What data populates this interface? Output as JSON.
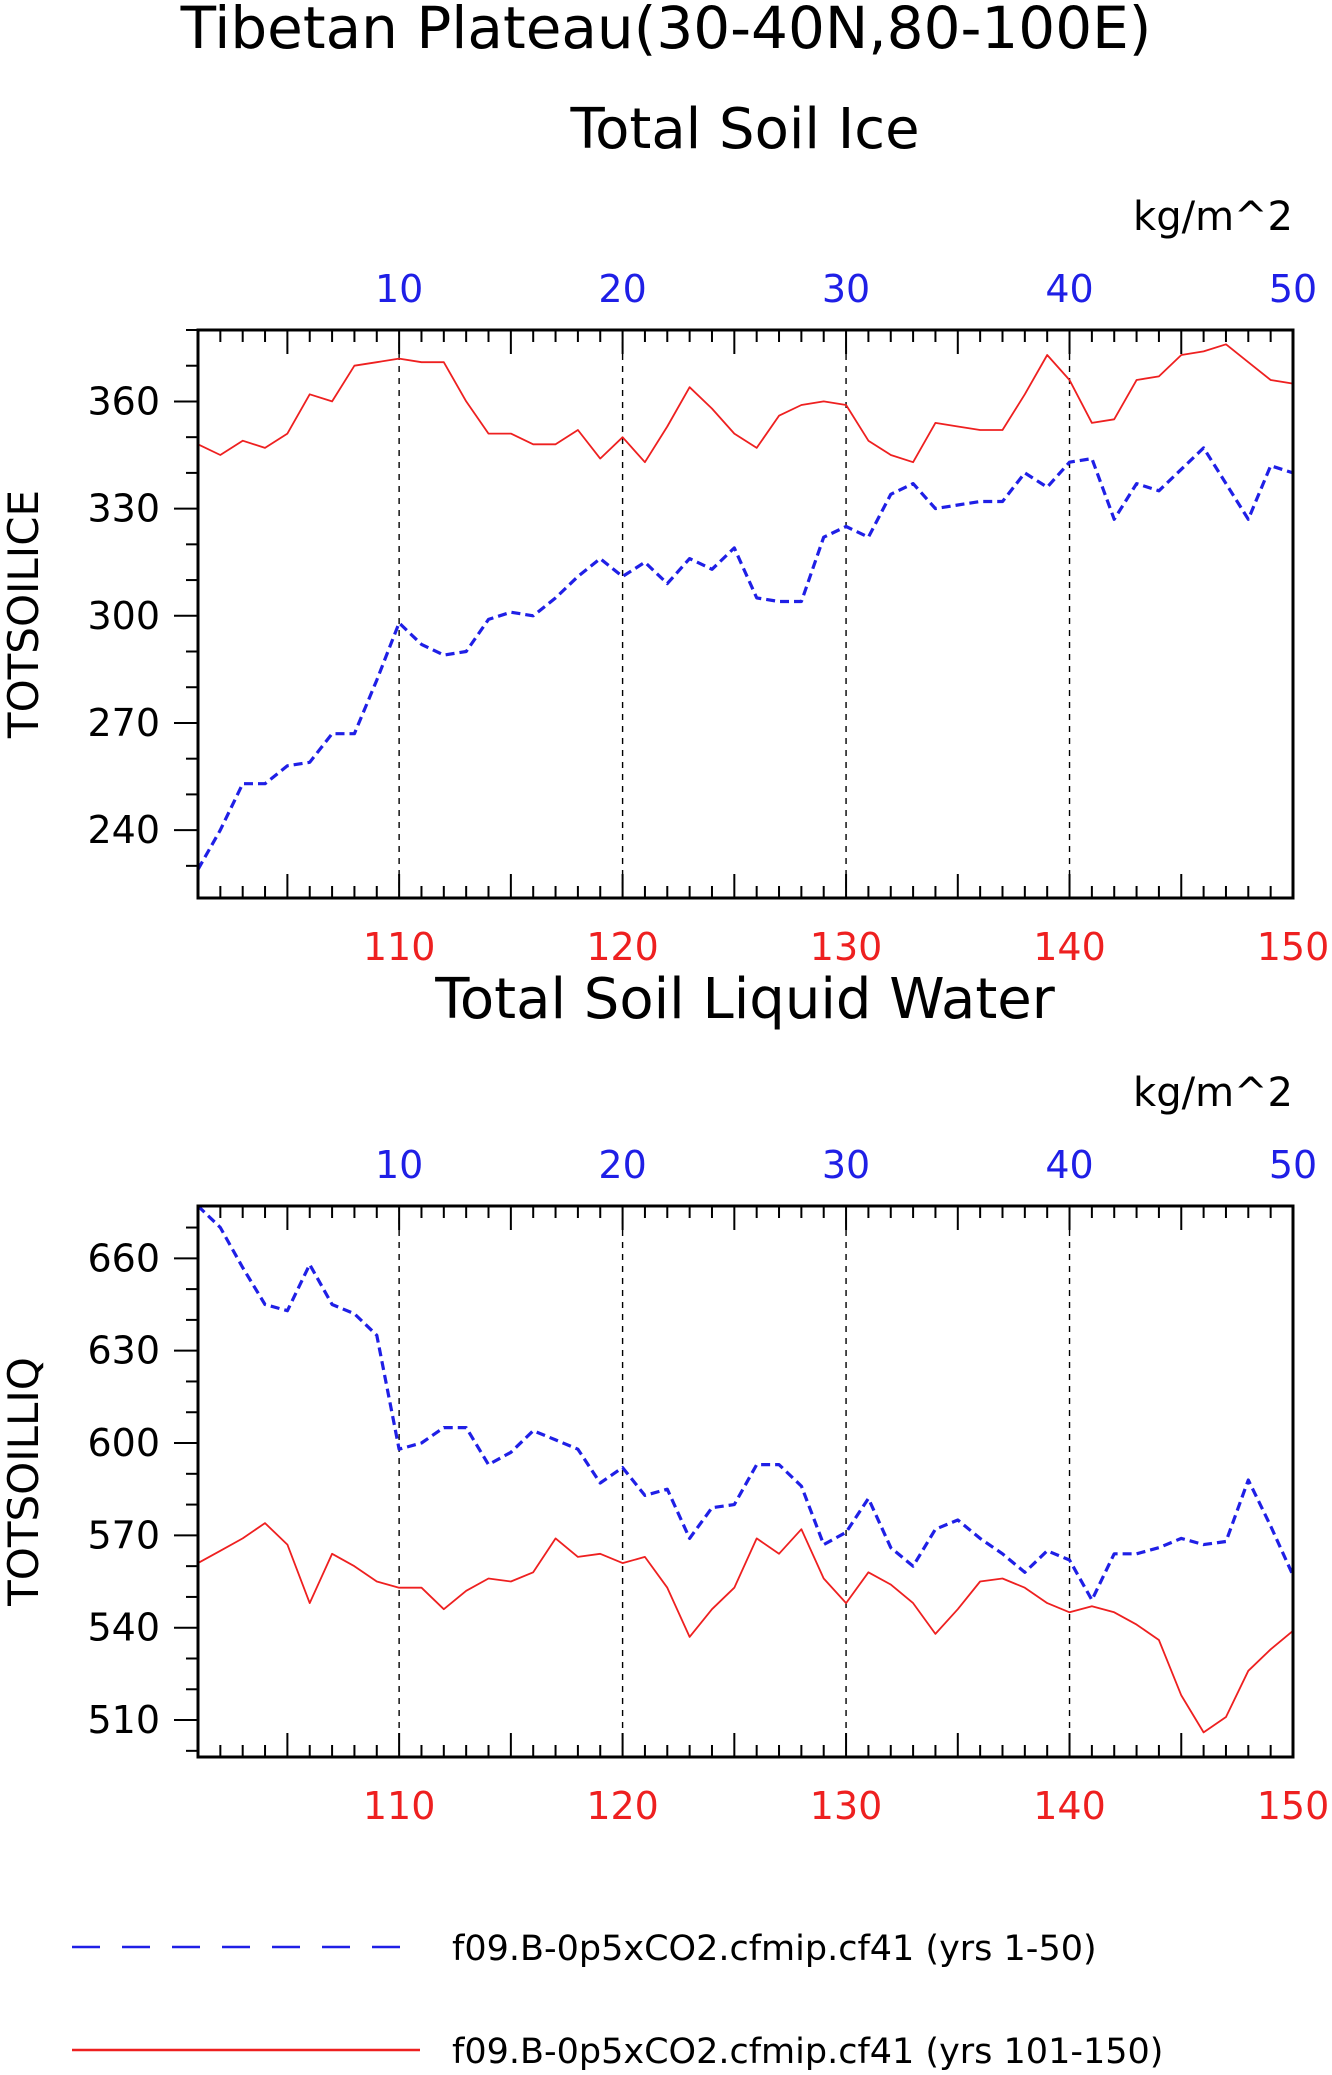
{
  "figure": {
    "title": "Tibetan Plateau(30-40N,80-100E)",
    "colors": {
      "blue": "#1f1fe6",
      "red": "#ee2020",
      "black": "#000000"
    }
  },
  "legend": {
    "entries": [
      {
        "label": "f09.B-0p5xCO2.cfmip.cf41 (yrs 1-50)",
        "style": "dashed",
        "color": "#1f1fe6"
      },
      {
        "label": "f09.B-0p5xCO2.cfmip.cf41 (yrs 101-150)",
        "style": "solid",
        "color": "#ee2020"
      }
    ]
  },
  "chart_data": [
    {
      "type": "line",
      "title": "Total Soil Ice",
      "units": "kg/m^2",
      "ylabel": "TOTSOILICE",
      "ylim": [
        221,
        380
      ],
      "yticks": [
        240,
        270,
        300,
        330,
        360
      ],
      "grid": "vertical dashed at tick positions",
      "top_axis": {
        "color": "blue",
        "ticks": [
          10,
          20,
          30,
          40,
          50
        ],
        "xlim": [
          1,
          50
        ]
      },
      "bottom_axis": {
        "color": "red",
        "ticks": [
          110,
          120,
          130,
          140,
          150
        ],
        "xlim": [
          101,
          150
        ]
      },
      "series": [
        {
          "style": "dashed",
          "color": "blue",
          "axis": "top",
          "x": [
            1,
            2,
            3,
            4,
            5,
            6,
            7,
            8,
            9,
            10,
            11,
            12,
            13,
            14,
            15,
            16,
            17,
            18,
            19,
            20,
            21,
            22,
            23,
            24,
            25,
            26,
            27,
            28,
            29,
            30,
            31,
            32,
            33,
            34,
            35,
            36,
            37,
            38,
            39,
            40,
            41,
            42,
            43,
            44,
            45,
            46,
            47,
            48,
            49,
            50
          ],
          "values": [
            229,
            240,
            253,
            253,
            258,
            259,
            267,
            267,
            282,
            298,
            292,
            289,
            290,
            299,
            301,
            300,
            305,
            311,
            316,
            311,
            315,
            309,
            316,
            313,
            319,
            305,
            304,
            304,
            322,
            325,
            322,
            334,
            337,
            330,
            331,
            332,
            332,
            340,
            336,
            343,
            344,
            327,
            337,
            335,
            341,
            347,
            337,
            327,
            342,
            340
          ]
        },
        {
          "style": "solid",
          "color": "red",
          "axis": "bottom",
          "x": [
            101,
            102,
            103,
            104,
            105,
            106,
            107,
            108,
            109,
            110,
            111,
            112,
            113,
            114,
            115,
            116,
            117,
            118,
            119,
            120,
            121,
            122,
            123,
            124,
            125,
            126,
            127,
            128,
            129,
            130,
            131,
            132,
            133,
            134,
            135,
            136,
            137,
            138,
            139,
            140,
            141,
            142,
            143,
            144,
            145,
            146,
            147,
            148,
            149,
            150
          ],
          "values": [
            348,
            345,
            349,
            347,
            351,
            362,
            360,
            370,
            371,
            372,
            371,
            371,
            360,
            351,
            351,
            348,
            348,
            352,
            344,
            350,
            343,
            353,
            364,
            358,
            351,
            347,
            356,
            359,
            360,
            359,
            349,
            345,
            343,
            354,
            353,
            352,
            352,
            362,
            373,
            366,
            354,
            355,
            366,
            367,
            373,
            374,
            376,
            371,
            366,
            365
          ]
        }
      ]
    },
    {
      "type": "line",
      "title": "Total Soil Liquid Water",
      "units": "kg/m^2",
      "ylabel": "TOTSOILLIQ",
      "ylim": [
        498,
        677
      ],
      "yticks": [
        510,
        540,
        570,
        600,
        630,
        660
      ],
      "grid": "vertical dashed at tick positions",
      "top_axis": {
        "color": "blue",
        "ticks": [
          10,
          20,
          30,
          40,
          50
        ],
        "xlim": [
          1,
          50
        ]
      },
      "bottom_axis": {
        "color": "red",
        "ticks": [
          110,
          120,
          130,
          140,
          150
        ],
        "xlim": [
          101,
          150
        ]
      },
      "series": [
        {
          "style": "dashed",
          "color": "blue",
          "axis": "top",
          "x": [
            1,
            2,
            3,
            4,
            5,
            6,
            7,
            8,
            9,
            10,
            11,
            12,
            13,
            14,
            15,
            16,
            17,
            18,
            19,
            20,
            21,
            22,
            23,
            24,
            25,
            26,
            27,
            28,
            29,
            30,
            31,
            32,
            33,
            34,
            35,
            36,
            37,
            38,
            39,
            40,
            41,
            42,
            43,
            44,
            45,
            46,
            47,
            48,
            49,
            50
          ],
          "values": [
            677,
            670,
            657,
            645,
            643,
            658,
            645,
            642,
            635,
            598,
            600,
            605,
            605,
            593,
            597,
            604,
            601,
            598,
            587,
            592,
            583,
            585,
            569,
            579,
            580,
            593,
            593,
            586,
            567,
            571,
            582,
            566,
            560,
            572,
            575,
            569,
            564,
            558,
            565,
            562,
            549,
            564,
            564,
            566,
            569,
            567,
            568,
            588,
            573,
            557
          ]
        },
        {
          "style": "solid",
          "color": "red",
          "axis": "bottom",
          "x": [
            101,
            102,
            103,
            104,
            105,
            106,
            107,
            108,
            109,
            110,
            111,
            112,
            113,
            114,
            115,
            116,
            117,
            118,
            119,
            120,
            121,
            122,
            123,
            124,
            125,
            126,
            127,
            128,
            129,
            130,
            131,
            132,
            133,
            134,
            135,
            136,
            137,
            138,
            139,
            140,
            141,
            142,
            143,
            144,
            145,
            146,
            147,
            148,
            149,
            150
          ],
          "values": [
            561,
            565,
            569,
            574,
            567,
            548,
            564,
            560,
            555,
            553,
            553,
            546,
            552,
            556,
            555,
            558,
            569,
            563,
            564,
            561,
            563,
            553,
            537,
            546,
            553,
            569,
            564,
            572,
            556,
            548,
            558,
            554,
            548,
            538,
            546,
            555,
            556,
            553,
            548,
            545,
            547,
            545,
            541,
            536,
            518,
            506,
            511,
            526,
            533,
            539
          ]
        }
      ]
    }
  ]
}
